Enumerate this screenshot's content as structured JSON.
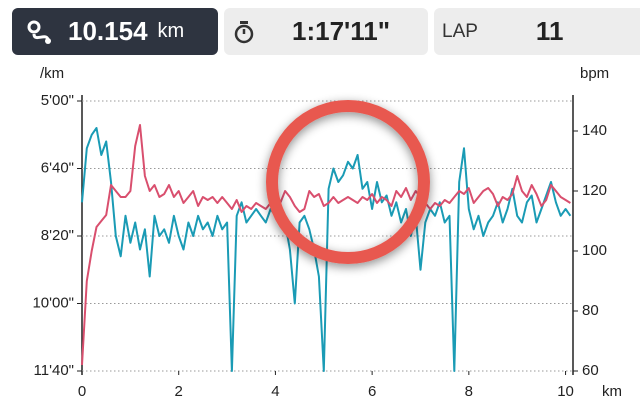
{
  "header": {
    "distance": {
      "value": "10.154",
      "unit": "km"
    },
    "time": {
      "value": "1:17'11\""
    },
    "lap": {
      "label": "LAP",
      "value": "11"
    }
  },
  "chart_data": {
    "type": "line",
    "y_label": "/km",
    "y2_label": "bpm",
    "x_label": "km",
    "xlim": [
      0,
      10.154
    ],
    "xticks": [
      0,
      2,
      4,
      6,
      8,
      10
    ],
    "ylim": [
      700,
      300
    ],
    "yticks": [
      {
        "value": 300,
        "label": "5'00\""
      },
      {
        "value": 400,
        "label": "6'40\""
      },
      {
        "value": 500,
        "label": "8'20\""
      },
      {
        "value": 600,
        "label": "10'00\""
      },
      {
        "value": 700,
        "label": "11'40\""
      }
    ],
    "y2lim": [
      60,
      150
    ],
    "y2ticks": [
      60,
      80,
      100,
      120,
      140
    ],
    "grid": true,
    "x": [
      0.0,
      0.1,
      0.2,
      0.3,
      0.4,
      0.5,
      0.6,
      0.7,
      0.8,
      0.9,
      1.0,
      1.1,
      1.2,
      1.3,
      1.4,
      1.5,
      1.6,
      1.7,
      1.8,
      1.9,
      2.0,
      2.1,
      2.2,
      2.3,
      2.4,
      2.5,
      2.6,
      2.7,
      2.8,
      2.9,
      3.0,
      3.1,
      3.2,
      3.3,
      3.4,
      3.5,
      3.6,
      3.7,
      3.8,
      3.9,
      4.0,
      4.1,
      4.2,
      4.3,
      4.4,
      4.5,
      4.6,
      4.7,
      4.8,
      4.9,
      5.0,
      5.1,
      5.2,
      5.3,
      5.4,
      5.5,
      5.6,
      5.7,
      5.8,
      5.9,
      6.0,
      6.1,
      6.2,
      6.3,
      6.4,
      6.5,
      6.6,
      6.7,
      6.8,
      6.9,
      7.0,
      7.1,
      7.2,
      7.3,
      7.4,
      7.5,
      7.6,
      7.7,
      7.8,
      7.9,
      8.0,
      8.1,
      8.2,
      8.3,
      8.4,
      8.5,
      8.6,
      8.7,
      8.8,
      8.9,
      9.0,
      9.1,
      9.2,
      9.3,
      9.4,
      9.5,
      9.6,
      9.7,
      9.8,
      9.9,
      10.0,
      10.1
    ],
    "series": [
      {
        "color": "#1a9bb5",
        "values": [
          450,
          370,
          350,
          340,
          380,
          360,
          420,
          500,
          530,
          470,
          510,
          480,
          520,
          490,
          560,
          470,
          500,
          490,
          510,
          470,
          500,
          520,
          480,
          500,
          470,
          490,
          480,
          500,
          470,
          490,
          480,
          700,
          470,
          450,
          480,
          470,
          460,
          470,
          480,
          460,
          470,
          460,
          480,
          520,
          600,
          480,
          470,
          490,
          520,
          560,
          700,
          430,
          400,
          420,
          410,
          390,
          400,
          380,
          430,
          420,
          460,
          420,
          450,
          440,
          470,
          450,
          480,
          460,
          500,
          470,
          550,
          480,
          460,
          470,
          450,
          480,
          470,
          700,
          420,
          370,
          460,
          490,
          470,
          500,
          480,
          470,
          450,
          480,
          460,
          430,
          470,
          480,
          450,
          440,
          480,
          460,
          440,
          420,
          450,
          470,
          460,
          470
        ]
      },
      {
        "color": "#d94f6e",
        "axis": "y2",
        "values": [
          62,
          90,
          100,
          108,
          110,
          112,
          122,
          120,
          118,
          118,
          120,
          135,
          142,
          125,
          120,
          122,
          118,
          119,
          122,
          118,
          120,
          116,
          118,
          120,
          115,
          118,
          117,
          118,
          116,
          118,
          116,
          114,
          117,
          113,
          115,
          114,
          116,
          115,
          114,
          116,
          117,
          116,
          120,
          118,
          115,
          113,
          114,
          120,
          118,
          119,
          115,
          116,
          118,
          116,
          117,
          118,
          117,
          116,
          118,
          117,
          119,
          116,
          118,
          117,
          115,
          120,
          118,
          121,
          117,
          120,
          118,
          116,
          114,
          116,
          115,
          117,
          116,
          118,
          120,
          119,
          121,
          116,
          118,
          120,
          121,
          119,
          115,
          118,
          117,
          119,
          125,
          120,
          118,
          122,
          119,
          115,
          117,
          122,
          120,
          118,
          117,
          116
        ]
      }
    ]
  }
}
